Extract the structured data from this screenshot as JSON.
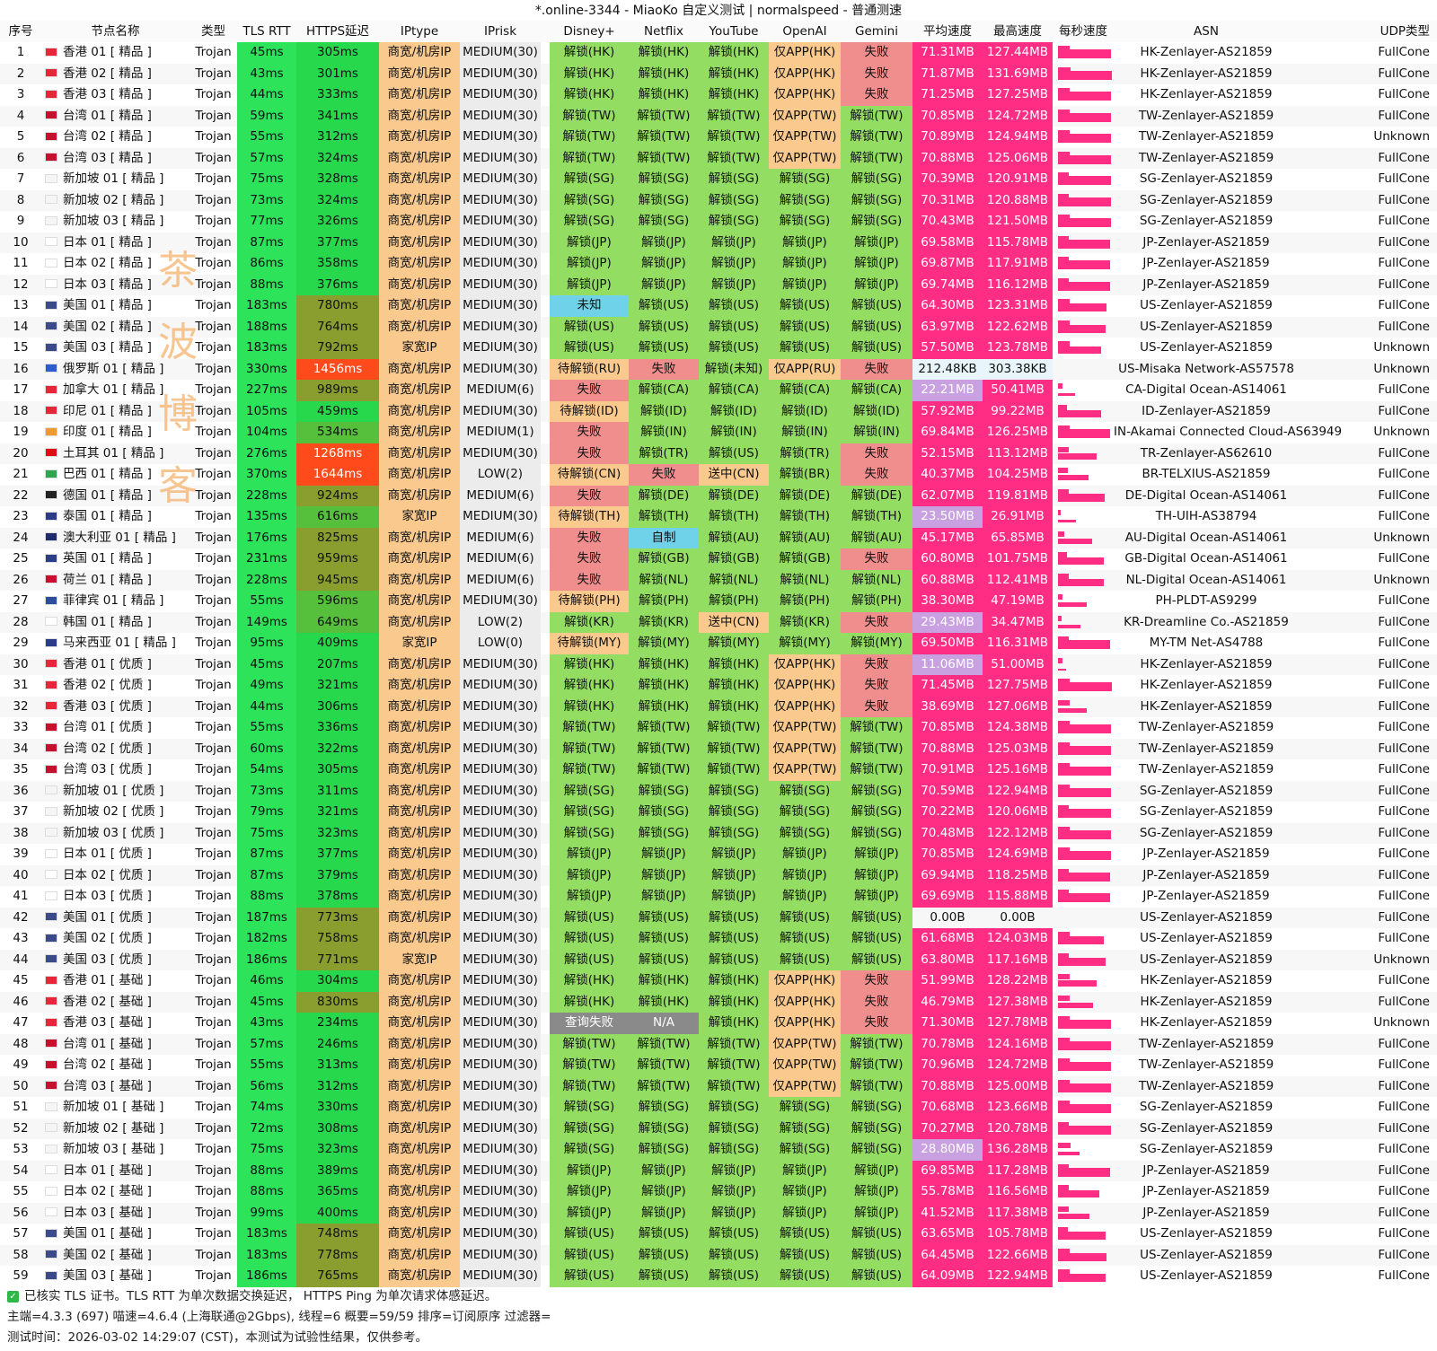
{
  "window": {
    "title": "*.online-3344 - MiaoKo 自定义测试 | normalspeed - 普通测速"
  },
  "headers": [
    "序号",
    "节点名称",
    "类型",
    "TLS RTT",
    "HTTPS延迟",
    "IPtype",
    "IPrisk",
    "Disney+",
    "Netflix",
    "YouTube",
    "OpenAI",
    "Gemini",
    "平均速度",
    "最高速度",
    "每秒速度",
    "ASN",
    "UDP类型"
  ],
  "watermark": [
    "茶",
    "波",
    "博",
    "客"
  ],
  "status_colors": {
    "ok": "#93dd62",
    "fail": "#f08d8d",
    "wait": "#f9c98d",
    "unknown": "#6fd2e9",
    "app": "#f9c98d",
    "gray": "#8a8a8a",
    "speed": "#ff2d84",
    "slow": "#c9a0e0",
    "iptype": "#f9c98d",
    "rtt": "#2ce35a"
  },
  "rows": [
    [
      "1",
      "香港 01 [ 精品 ]",
      "Trojan",
      "45ms",
      "305ms",
      "商宽/机房IP",
      "MEDIUM(30)",
      "解锁(HK)",
      "解锁(HK)",
      "解锁(HK)",
      "仅APP(HK)",
      "失败",
      "71.31MB",
      "127.44MB",
      "",
      "HK-Zenlayer-AS21859",
      "FullCone",
      "hk"
    ],
    [
      "2",
      "香港 02 [ 精品 ]",
      "Trojan",
      "43ms",
      "301ms",
      "商宽/机房IP",
      "MEDIUM(30)",
      "解锁(HK)",
      "解锁(HK)",
      "解锁(HK)",
      "仅APP(HK)",
      "失败",
      "71.87MB",
      "131.69MB",
      "",
      "HK-Zenlayer-AS21859",
      "FullCone",
      "hk"
    ],
    [
      "3",
      "香港 03 [ 精品 ]",
      "Trojan",
      "44ms",
      "333ms",
      "商宽/机房IP",
      "MEDIUM(30)",
      "解锁(HK)",
      "解锁(HK)",
      "解锁(HK)",
      "仅APP(HK)",
      "失败",
      "71.25MB",
      "127.25MB",
      "",
      "HK-Zenlayer-AS21859",
      "FullCone",
      "hk"
    ],
    [
      "4",
      "台湾 01 [ 精品 ]",
      "Trojan",
      "59ms",
      "341ms",
      "商宽/机房IP",
      "MEDIUM(30)",
      "解锁(TW)",
      "解锁(TW)",
      "解锁(TW)",
      "仅APP(TW)",
      "解锁(TW)",
      "70.85MB",
      "124.72MB",
      "",
      "TW-Zenlayer-AS21859",
      "FullCone",
      "tw"
    ],
    [
      "5",
      "台湾 02 [ 精品 ]",
      "Trojan",
      "55ms",
      "312ms",
      "商宽/机房IP",
      "MEDIUM(30)",
      "解锁(TW)",
      "解锁(TW)",
      "解锁(TW)",
      "仅APP(TW)",
      "解锁(TW)",
      "70.89MB",
      "124.94MB",
      "",
      "TW-Zenlayer-AS21859",
      "Unknown",
      "tw"
    ],
    [
      "6",
      "台湾 03 [ 精品 ]",
      "Trojan",
      "57ms",
      "324ms",
      "商宽/机房IP",
      "MEDIUM(30)",
      "解锁(TW)",
      "解锁(TW)",
      "解锁(TW)",
      "仅APP(TW)",
      "解锁(TW)",
      "70.88MB",
      "125.06MB",
      "",
      "TW-Zenlayer-AS21859",
      "FullCone",
      "tw"
    ],
    [
      "7",
      "新加坡 01 [ 精品 ]",
      "Trojan",
      "75ms",
      "328ms",
      "商宽/机房IP",
      "MEDIUM(30)",
      "解锁(SG)",
      "解锁(SG)",
      "解锁(SG)",
      "解锁(SG)",
      "解锁(SG)",
      "70.39MB",
      "120.91MB",
      "",
      "SG-Zenlayer-AS21859",
      "FullCone",
      "sg"
    ],
    [
      "8",
      "新加坡 02 [ 精品 ]",
      "Trojan",
      "73ms",
      "324ms",
      "商宽/机房IP",
      "MEDIUM(30)",
      "解锁(SG)",
      "解锁(SG)",
      "解锁(SG)",
      "解锁(SG)",
      "解锁(SG)",
      "70.31MB",
      "120.88MB",
      "",
      "SG-Zenlayer-AS21859",
      "FullCone",
      "sg"
    ],
    [
      "9",
      "新加坡 03 [ 精品 ]",
      "Trojan",
      "77ms",
      "326ms",
      "商宽/机房IP",
      "MEDIUM(30)",
      "解锁(SG)",
      "解锁(SG)",
      "解锁(SG)",
      "解锁(SG)",
      "解锁(SG)",
      "70.43MB",
      "121.50MB",
      "",
      "SG-Zenlayer-AS21859",
      "FullCone",
      "sg"
    ],
    [
      "10",
      "日本 01 [ 精品 ]",
      "Trojan",
      "87ms",
      "377ms",
      "商宽/机房IP",
      "MEDIUM(30)",
      "解锁(JP)",
      "解锁(JP)",
      "解锁(JP)",
      "解锁(JP)",
      "解锁(JP)",
      "69.58MB",
      "115.78MB",
      "",
      "JP-Zenlayer-AS21859",
      "FullCone",
      "jp"
    ],
    [
      "11",
      "日本 02 [ 精品 ]",
      "Trojan",
      "86ms",
      "358ms",
      "商宽/机房IP",
      "MEDIUM(30)",
      "解锁(JP)",
      "解锁(JP)",
      "解锁(JP)",
      "解锁(JP)",
      "解锁(JP)",
      "69.87MB",
      "117.91MB",
      "",
      "JP-Zenlayer-AS21859",
      "FullCone",
      "jp"
    ],
    [
      "12",
      "日本 03 [ 精品 ]",
      "Trojan",
      "88ms",
      "376ms",
      "商宽/机房IP",
      "MEDIUM(30)",
      "解锁(JP)",
      "解锁(JP)",
      "解锁(JP)",
      "解锁(JP)",
      "解锁(JP)",
      "69.74MB",
      "116.12MB",
      "",
      "JP-Zenlayer-AS21859",
      "FullCone",
      "jp"
    ],
    [
      "13",
      "美国 01 [ 精品 ]",
      "Trojan",
      "183ms",
      "780ms",
      "商宽/机房IP",
      "MEDIUM(30)",
      "未知",
      "解锁(US)",
      "解锁(US)",
      "解锁(US)",
      "解锁(US)",
      "64.30MB",
      "123.31MB",
      "",
      "US-Zenlayer-AS21859",
      "FullCone",
      "us"
    ],
    [
      "14",
      "美国 02 [ 精品 ]",
      "Trojan",
      "188ms",
      "764ms",
      "商宽/机房IP",
      "MEDIUM(30)",
      "解锁(US)",
      "解锁(US)",
      "解锁(US)",
      "解锁(US)",
      "解锁(US)",
      "63.97MB",
      "122.62MB",
      "",
      "US-Zenlayer-AS21859",
      "FullCone",
      "us"
    ],
    [
      "15",
      "美国 03 [ 精品 ]",
      "Trojan",
      "183ms",
      "792ms",
      "家宽IP",
      "MEDIUM(30)",
      "解锁(US)",
      "解锁(US)",
      "解锁(US)",
      "解锁(US)",
      "解锁(US)",
      "57.50MB",
      "123.78MB",
      "",
      "US-Zenlayer-AS21859",
      "Unknown",
      "us"
    ],
    [
      "16",
      "俄罗斯 01 [ 精品 ]",
      "Trojan",
      "330ms",
      "1456ms",
      "商宽/机房IP",
      "MEDIUM(30)",
      "待解锁(RU)",
      "失败",
      "解锁(未知)",
      "仅APP(RU)",
      "失败",
      "212.48KB",
      "303.38KB",
      "",
      "US-Misaka Network-AS57578",
      "Unknown",
      "ru"
    ],
    [
      "17",
      "加拿大 01 [ 精品 ]",
      "Trojan",
      "227ms",
      "989ms",
      "商宽/机房IP",
      "MEDIUM(6)",
      "失败",
      "解锁(CA)",
      "解锁(CA)",
      "解锁(CA)",
      "解锁(CA)",
      "22.21MB",
      "50.41MB",
      "",
      "CA-Digital Ocean-AS14061",
      "FullCone",
      "ca"
    ],
    [
      "18",
      "印尼 01 [ 精品 ]",
      "Trojan",
      "105ms",
      "459ms",
      "商宽/机房IP",
      "MEDIUM(30)",
      "待解锁(ID)",
      "解锁(ID)",
      "解锁(ID)",
      "解锁(ID)",
      "解锁(ID)",
      "57.92MB",
      "99.22MB",
      "",
      "ID-Zenlayer-AS21859",
      "FullCone",
      "id"
    ],
    [
      "19",
      "印度 01 [ 精品 ]",
      "Trojan",
      "104ms",
      "534ms",
      "商宽/机房IP",
      "MEDIUM(1)",
      "失败",
      "解锁(IN)",
      "解锁(IN)",
      "解锁(IN)",
      "解锁(IN)",
      "69.84MB",
      "126.25MB",
      "",
      "IN-Akamai Connected Cloud-AS63949",
      "Unknown",
      "in"
    ],
    [
      "20",
      "土耳其 01 [ 精品 ]",
      "Trojan",
      "276ms",
      "1268ms",
      "商宽/机房IP",
      "MEDIUM(30)",
      "失败",
      "解锁(TR)",
      "解锁(US)",
      "解锁(TR)",
      "失败",
      "52.15MB",
      "113.12MB",
      "",
      "TR-Zenlayer-AS62610",
      "FullCone",
      "tr"
    ],
    [
      "21",
      "巴西 01 [ 精品 ]",
      "Trojan",
      "370ms",
      "1644ms",
      "商宽/机房IP",
      "LOW(2)",
      "待解锁(CN)",
      "失败",
      "送中(CN)",
      "解锁(BR)",
      "失败",
      "40.37MB",
      "104.25MB",
      "",
      "BR-TELXIUS-AS21859",
      "FullCone",
      "br"
    ],
    [
      "22",
      "德国 01 [ 精品 ]",
      "Trojan",
      "228ms",
      "924ms",
      "商宽/机房IP",
      "MEDIUM(6)",
      "失败",
      "解锁(DE)",
      "解锁(DE)",
      "解锁(DE)",
      "解锁(DE)",
      "62.07MB",
      "119.81MB",
      "",
      "DE-Digital Ocean-AS14061",
      "FullCone",
      "de"
    ],
    [
      "23",
      "泰国 01 [ 精品 ]",
      "Trojan",
      "135ms",
      "616ms",
      "家宽IP",
      "MEDIUM(30)",
      "待解锁(TH)",
      "解锁(TH)",
      "解锁(TH)",
      "解锁(TH)",
      "解锁(TH)",
      "23.50MB",
      "26.91MB",
      "",
      "TH-UIH-AS38794",
      "FullCone",
      "th"
    ],
    [
      "24",
      "澳大利亚 01 [ 精品 ]",
      "Trojan",
      "176ms",
      "825ms",
      "商宽/机房IP",
      "MEDIUM(6)",
      "失败",
      "自制",
      "解锁(AU)",
      "解锁(AU)",
      "解锁(AU)",
      "45.17MB",
      "65.85MB",
      "",
      "AU-Digital Ocean-AS14061",
      "Unknown",
      "au"
    ],
    [
      "25",
      "英国 01 [ 精品 ]",
      "Trojan",
      "231ms",
      "959ms",
      "商宽/机房IP",
      "MEDIUM(6)",
      "失败",
      "解锁(GB)",
      "解锁(GB)",
      "解锁(GB)",
      "失败",
      "60.80MB",
      "101.75MB",
      "",
      "GB-Digital Ocean-AS14061",
      "FullCone",
      "gb"
    ],
    [
      "26",
      "荷兰 01 [ 精品 ]",
      "Trojan",
      "228ms",
      "945ms",
      "商宽/机房IP",
      "MEDIUM(6)",
      "失败",
      "解锁(NL)",
      "解锁(NL)",
      "解锁(NL)",
      "解锁(NL)",
      "60.88MB",
      "112.41MB",
      "",
      "NL-Digital Ocean-AS14061",
      "Unknown",
      "nl"
    ],
    [
      "27",
      "菲律宾 01 [ 精品 ]",
      "Trojan",
      "55ms",
      "596ms",
      "商宽/机房IP",
      "MEDIUM(30)",
      "待解锁(PH)",
      "解锁(PH)",
      "解锁(PH)",
      "解锁(PH)",
      "解锁(PH)",
      "38.30MB",
      "47.19MB",
      "",
      "PH-PLDT-AS9299",
      "FullCone",
      "ph"
    ],
    [
      "28",
      "韩国 01 [ 精品 ]",
      "Trojan",
      "149ms",
      "649ms",
      "商宽/机房IP",
      "LOW(2)",
      "解锁(KR)",
      "解锁(KR)",
      "送中(CN)",
      "解锁(KR)",
      "失败",
      "29.43MB",
      "34.47MB",
      "",
      "KR-Dreamline Co.-AS21859",
      "FullCone",
      "kr"
    ],
    [
      "29",
      "马来西亚 01 [ 精品 ]",
      "Trojan",
      "95ms",
      "409ms",
      "家宽IP",
      "LOW(0)",
      "待解锁(MY)",
      "解锁(MY)",
      "解锁(MY)",
      "解锁(MY)",
      "解锁(MY)",
      "69.50MB",
      "116.31MB",
      "",
      "MY-TM Net-AS4788",
      "FullCone",
      "my"
    ],
    [
      "30",
      "香港 01 [ 优质 ]",
      "Trojan",
      "45ms",
      "207ms",
      "商宽/机房IP",
      "MEDIUM(30)",
      "解锁(HK)",
      "解锁(HK)",
      "解锁(HK)",
      "仅APP(HK)",
      "失败",
      "11.06MB",
      "51.00MB",
      "",
      "HK-Zenlayer-AS21859",
      "FullCone",
      "hk"
    ],
    [
      "31",
      "香港 02 [ 优质 ]",
      "Trojan",
      "49ms",
      "321ms",
      "商宽/机房IP",
      "MEDIUM(30)",
      "解锁(HK)",
      "解锁(HK)",
      "解锁(HK)",
      "仅APP(HK)",
      "失败",
      "71.45MB",
      "127.75MB",
      "",
      "HK-Zenlayer-AS21859",
      "FullCone",
      "hk"
    ],
    [
      "32",
      "香港 03 [ 优质 ]",
      "Trojan",
      "44ms",
      "306ms",
      "商宽/机房IP",
      "MEDIUM(30)",
      "解锁(HK)",
      "解锁(HK)",
      "解锁(HK)",
      "仅APP(HK)",
      "失败",
      "38.69MB",
      "127.06MB",
      "",
      "HK-Zenlayer-AS21859",
      "FullCone",
      "hk"
    ],
    [
      "33",
      "台湾 01 [ 优质 ]",
      "Trojan",
      "55ms",
      "336ms",
      "商宽/机房IP",
      "MEDIUM(30)",
      "解锁(TW)",
      "解锁(TW)",
      "解锁(TW)",
      "仅APP(TW)",
      "解锁(TW)",
      "70.85MB",
      "124.38MB",
      "",
      "TW-Zenlayer-AS21859",
      "FullCone",
      "tw"
    ],
    [
      "34",
      "台湾 02 [ 优质 ]",
      "Trojan",
      "60ms",
      "322ms",
      "商宽/机房IP",
      "MEDIUM(30)",
      "解锁(TW)",
      "解锁(TW)",
      "解锁(TW)",
      "仅APP(TW)",
      "解锁(TW)",
      "70.88MB",
      "125.03MB",
      "",
      "TW-Zenlayer-AS21859",
      "FullCone",
      "tw"
    ],
    [
      "35",
      "台湾 03 [ 优质 ]",
      "Trojan",
      "54ms",
      "305ms",
      "商宽/机房IP",
      "MEDIUM(30)",
      "解锁(TW)",
      "解锁(TW)",
      "解锁(TW)",
      "仅APP(TW)",
      "解锁(TW)",
      "70.91MB",
      "125.16MB",
      "",
      "TW-Zenlayer-AS21859",
      "FullCone",
      "tw"
    ],
    [
      "36",
      "新加坡 01 [ 优质 ]",
      "Trojan",
      "73ms",
      "311ms",
      "商宽/机房IP",
      "MEDIUM(30)",
      "解锁(SG)",
      "解锁(SG)",
      "解锁(SG)",
      "解锁(SG)",
      "解锁(SG)",
      "70.59MB",
      "122.94MB",
      "",
      "SG-Zenlayer-AS21859",
      "FullCone",
      "sg"
    ],
    [
      "37",
      "新加坡 02 [ 优质 ]",
      "Trojan",
      "79ms",
      "321ms",
      "商宽/机房IP",
      "MEDIUM(30)",
      "解锁(SG)",
      "解锁(SG)",
      "解锁(SG)",
      "解锁(SG)",
      "解锁(SG)",
      "70.22MB",
      "120.06MB",
      "",
      "SG-Zenlayer-AS21859",
      "FullCone",
      "sg"
    ],
    [
      "38",
      "新加坡 03 [ 优质 ]",
      "Trojan",
      "75ms",
      "323ms",
      "商宽/机房IP",
      "MEDIUM(30)",
      "解锁(SG)",
      "解锁(SG)",
      "解锁(SG)",
      "解锁(SG)",
      "解锁(SG)",
      "70.48MB",
      "122.12MB",
      "",
      "SG-Zenlayer-AS21859",
      "FullCone",
      "sg"
    ],
    [
      "39",
      "日本 01 [ 优质 ]",
      "Trojan",
      "87ms",
      "377ms",
      "商宽/机房IP",
      "MEDIUM(30)",
      "解锁(JP)",
      "解锁(JP)",
      "解锁(JP)",
      "解锁(JP)",
      "解锁(JP)",
      "70.85MB",
      "124.69MB",
      "",
      "JP-Zenlayer-AS21859",
      "FullCone",
      "jp"
    ],
    [
      "40",
      "日本 02 [ 优质 ]",
      "Trojan",
      "87ms",
      "379ms",
      "商宽/机房IP",
      "MEDIUM(30)",
      "解锁(JP)",
      "解锁(JP)",
      "解锁(JP)",
      "解锁(JP)",
      "解锁(JP)",
      "69.94MB",
      "118.25MB",
      "",
      "JP-Zenlayer-AS21859",
      "FullCone",
      "jp"
    ],
    [
      "41",
      "日本 03 [ 优质 ]",
      "Trojan",
      "88ms",
      "378ms",
      "商宽/机房IP",
      "MEDIUM(30)",
      "解锁(JP)",
      "解锁(JP)",
      "解锁(JP)",
      "解锁(JP)",
      "解锁(JP)",
      "69.69MB",
      "115.88MB",
      "",
      "JP-Zenlayer-AS21859",
      "FullCone",
      "jp"
    ],
    [
      "42",
      "美国 01 [ 优质 ]",
      "Trojan",
      "187ms",
      "773ms",
      "商宽/机房IP",
      "MEDIUM(30)",
      "解锁(US)",
      "解锁(US)",
      "解锁(US)",
      "解锁(US)",
      "解锁(US)",
      "0.00B",
      "0.00B",
      "",
      "US-Zenlayer-AS21859",
      "FullCone",
      "us"
    ],
    [
      "43",
      "美国 02 [ 优质 ]",
      "Trojan",
      "182ms",
      "758ms",
      "商宽/机房IP",
      "MEDIUM(30)",
      "解锁(US)",
      "解锁(US)",
      "解锁(US)",
      "解锁(US)",
      "解锁(US)",
      "61.68MB",
      "124.03MB",
      "",
      "US-Zenlayer-AS21859",
      "FullCone",
      "us"
    ],
    [
      "44",
      "美国 03 [ 优质 ]",
      "Trojan",
      "186ms",
      "771ms",
      "家宽IP",
      "MEDIUM(30)",
      "解锁(US)",
      "解锁(US)",
      "解锁(US)",
      "解锁(US)",
      "解锁(US)",
      "63.80MB",
      "117.16MB",
      "",
      "US-Zenlayer-AS21859",
      "Unknown",
      "us"
    ],
    [
      "45",
      "香港 01 [ 基础 ]",
      "Trojan",
      "46ms",
      "304ms",
      "商宽/机房IP",
      "MEDIUM(30)",
      "解锁(HK)",
      "解锁(HK)",
      "解锁(HK)",
      "仅APP(HK)",
      "失败",
      "51.99MB",
      "128.22MB",
      "",
      "HK-Zenlayer-AS21859",
      "FullCone",
      "hk"
    ],
    [
      "46",
      "香港 02 [ 基础 ]",
      "Trojan",
      "45ms",
      "830ms",
      "商宽/机房IP",
      "MEDIUM(30)",
      "解锁(HK)",
      "解锁(HK)",
      "解锁(HK)",
      "仅APP(HK)",
      "失败",
      "46.79MB",
      "127.38MB",
      "",
      "HK-Zenlayer-AS21859",
      "FullCone",
      "hk"
    ],
    [
      "47",
      "香港 03 [ 基础 ]",
      "Trojan",
      "43ms",
      "234ms",
      "商宽/机房IP",
      "MEDIUM(30)",
      "查询失败",
      "N/A",
      "解锁(HK)",
      "仅APP(HK)",
      "失败",
      "71.30MB",
      "127.78MB",
      "",
      "HK-Zenlayer-AS21859",
      "Unknown",
      "hk"
    ],
    [
      "48",
      "台湾 01 [ 基础 ]",
      "Trojan",
      "57ms",
      "246ms",
      "商宽/机房IP",
      "MEDIUM(30)",
      "解锁(TW)",
      "解锁(TW)",
      "解锁(TW)",
      "仅APP(TW)",
      "解锁(TW)",
      "70.78MB",
      "124.16MB",
      "",
      "TW-Zenlayer-AS21859",
      "FullCone",
      "tw"
    ],
    [
      "49",
      "台湾 02 [ 基础 ]",
      "Trojan",
      "55ms",
      "313ms",
      "商宽/机房IP",
      "MEDIUM(30)",
      "解锁(TW)",
      "解锁(TW)",
      "解锁(TW)",
      "仅APP(TW)",
      "解锁(TW)",
      "70.96MB",
      "124.72MB",
      "",
      "TW-Zenlayer-AS21859",
      "FullCone",
      "tw"
    ],
    [
      "50",
      "台湾 03 [ 基础 ]",
      "Trojan",
      "56ms",
      "312ms",
      "商宽/机房IP",
      "MEDIUM(30)",
      "解锁(TW)",
      "解锁(TW)",
      "解锁(TW)",
      "仅APP(TW)",
      "解锁(TW)",
      "70.88MB",
      "125.00MB",
      "",
      "TW-Zenlayer-AS21859",
      "FullCone",
      "tw"
    ],
    [
      "51",
      "新加坡 01 [ 基础 ]",
      "Trojan",
      "74ms",
      "330ms",
      "商宽/机房IP",
      "MEDIUM(30)",
      "解锁(SG)",
      "解锁(SG)",
      "解锁(SG)",
      "解锁(SG)",
      "解锁(SG)",
      "70.68MB",
      "123.66MB",
      "",
      "SG-Zenlayer-AS21859",
      "FullCone",
      "sg"
    ],
    [
      "52",
      "新加坡 02 [ 基础 ]",
      "Trojan",
      "72ms",
      "308ms",
      "商宽/机房IP",
      "MEDIUM(30)",
      "解锁(SG)",
      "解锁(SG)",
      "解锁(SG)",
      "解锁(SG)",
      "解锁(SG)",
      "70.27MB",
      "120.78MB",
      "",
      "SG-Zenlayer-AS21859",
      "FullCone",
      "sg"
    ],
    [
      "53",
      "新加坡 03 [ 基础 ]",
      "Trojan",
      "75ms",
      "323ms",
      "商宽/机房IP",
      "MEDIUM(30)",
      "解锁(SG)",
      "解锁(SG)",
      "解锁(SG)",
      "解锁(SG)",
      "解锁(SG)",
      "28.80MB",
      "136.28MB",
      "",
      "SG-Zenlayer-AS21859",
      "FullCone",
      "sg"
    ],
    [
      "54",
      "日本 01 [ 基础 ]",
      "Trojan",
      "88ms",
      "389ms",
      "商宽/机房IP",
      "MEDIUM(30)",
      "解锁(JP)",
      "解锁(JP)",
      "解锁(JP)",
      "解锁(JP)",
      "解锁(JP)",
      "69.85MB",
      "117.28MB",
      "",
      "JP-Zenlayer-AS21859",
      "FullCone",
      "jp"
    ],
    [
      "55",
      "日本 02 [ 基础 ]",
      "Trojan",
      "88ms",
      "365ms",
      "商宽/机房IP",
      "MEDIUM(30)",
      "解锁(JP)",
      "解锁(JP)",
      "解锁(JP)",
      "解锁(JP)",
      "解锁(JP)",
      "55.78MB",
      "116.56MB",
      "",
      "JP-Zenlayer-AS21859",
      "FullCone",
      "jp"
    ],
    [
      "56",
      "日本 03 [ 基础 ]",
      "Trojan",
      "99ms",
      "400ms",
      "商宽/机房IP",
      "MEDIUM(30)",
      "解锁(JP)",
      "解锁(JP)",
      "解锁(JP)",
      "解锁(JP)",
      "解锁(JP)",
      "41.52MB",
      "117.38MB",
      "",
      "JP-Zenlayer-AS21859",
      "FullCone",
      "jp"
    ],
    [
      "57",
      "美国 01 [ 基础 ]",
      "Trojan",
      "183ms",
      "748ms",
      "商宽/机房IP",
      "MEDIUM(30)",
      "解锁(US)",
      "解锁(US)",
      "解锁(US)",
      "解锁(US)",
      "解锁(US)",
      "63.65MB",
      "105.78MB",
      "",
      "US-Zenlayer-AS21859",
      "FullCone",
      "us"
    ],
    [
      "58",
      "美国 02 [ 基础 ]",
      "Trojan",
      "183ms",
      "778ms",
      "商宽/机房IP",
      "MEDIUM(30)",
      "解锁(US)",
      "解锁(US)",
      "解锁(US)",
      "解锁(US)",
      "解锁(US)",
      "64.45MB",
      "122.66MB",
      "",
      "US-Zenlayer-AS21859",
      "FullCone",
      "us"
    ],
    [
      "59",
      "美国 03 [ 基础 ]",
      "Trojan",
      "186ms",
      "765ms",
      "商宽/机房IP",
      "MEDIUM(30)",
      "解锁(US)",
      "解锁(US)",
      "解锁(US)",
      "解锁(US)",
      "解锁(US)",
      "64.09MB",
      "122.94MB",
      "",
      "US-Zenlayer-AS21859",
      "FullCone",
      "us"
    ]
  ],
  "footer": {
    "line1": "已核实 TLS 证书。TLS RTT 为单次数据交换延迟， HTTPS Ping 为单次请求体感延迟。",
    "line2": "主端=4.3.3 (697) 喵速=4.6.4 (上海联通@2Gbps), 线程=6 概要=59/59 排序=订阅原序 过滤器=",
    "line3": "测试时间：2026-03-02 14:29:07 (CST)，本测试为试验性结果，仅供参考。"
  }
}
